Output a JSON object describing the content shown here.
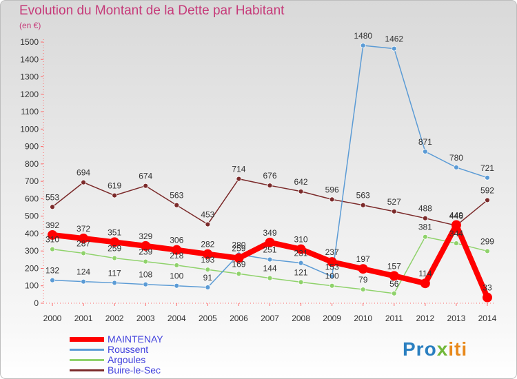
{
  "title": "Evolution du Montant de la Dette par Habitant",
  "subtitle": "(en €)",
  "logo": {
    "p1": "Pro",
    "p2": "x",
    "p3": "iti"
  },
  "chart_data": {
    "type": "line",
    "x": [
      "2000",
      "2001",
      "2002",
      "2003",
      "2004",
      "2005",
      "2006",
      "2007",
      "2008",
      "2009",
      "2010",
      "2011",
      "2012",
      "2013",
      "2014"
    ],
    "ylim": [
      0,
      1500
    ],
    "yticks": [
      0,
      100,
      200,
      300,
      400,
      500,
      600,
      700,
      800,
      900,
      1000,
      1100,
      1200,
      1300,
      1400,
      1500
    ],
    "grid": false,
    "legend_position": "bottom-left",
    "series": [
      {
        "name": "MAINTENAY",
        "color": "#ff0000",
        "values": [
          392,
          372,
          351,
          329,
          306,
          282,
          259,
          349,
          310,
          237,
          197,
          157,
          114,
          449,
          33
        ],
        "labels": [
          "392",
          "372",
          "351",
          "329",
          "306",
          "282",
          "259",
          "349",
          "310",
          "237",
          "197",
          "157",
          "114",
          "449",
          "33"
        ]
      },
      {
        "name": "Roussent",
        "color": "#5b9bd5",
        "values": [
          132,
          124,
          117,
          108,
          100,
          91,
          280,
          251,
          231,
          153,
          1480,
          1462,
          871,
          780,
          721
        ],
        "labels": [
          "132",
          "124",
          "117",
          "108",
          "100",
          "91",
          "280",
          "251",
          "231",
          "153",
          "1480",
          "1462",
          "871",
          "780",
          "721"
        ]
      },
      {
        "name": "Argoules",
        "color": "#8fd26b",
        "values": [
          310,
          287,
          259,
          239,
          218,
          193,
          169,
          144,
          121,
          100,
          79,
          56,
          381,
          344,
          299
        ],
        "labels": [
          "310",
          "287",
          "259",
          "239",
          "218",
          "193",
          "169",
          "144",
          "121",
          "100",
          "79",
          "56",
          "381",
          "344",
          "299"
        ]
      },
      {
        "name": "Buire-le-Sec",
        "color": "#7b2a2a",
        "values": [
          553,
          694,
          619,
          674,
          563,
          453,
          714,
          676,
          642,
          596,
          563,
          527,
          488,
          446,
          592
        ],
        "labels": [
          "553",
          "694",
          "619",
          "674",
          "563",
          "453",
          "714",
          "676",
          "642",
          "596",
          "563",
          "527",
          "488",
          "446",
          "592"
        ]
      }
    ]
  }
}
